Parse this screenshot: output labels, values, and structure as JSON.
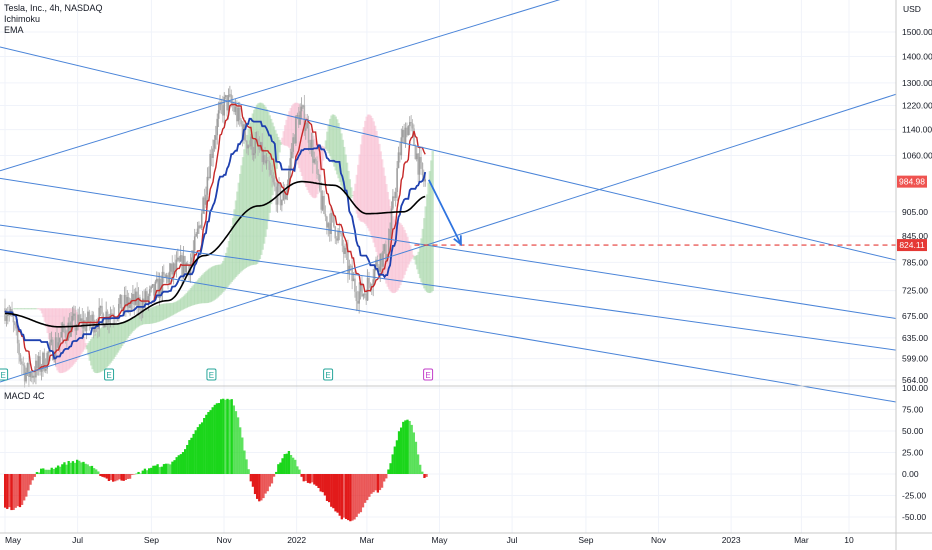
{
  "header": {
    "symbol_line": "Tesla, Inc., 4h, NASDAQ",
    "indicator_1": "Ichimoku",
    "indicator_2": "EMA",
    "currency": "USD"
  },
  "macd_label": "MACD 4C",
  "colors": {
    "up_candle": "#26a69a",
    "down_candle": "#ef5350",
    "conversion_line": "#c62828",
    "base_line": "#1e40af",
    "ema": "#000000",
    "cloud_green": "#a5d6a7",
    "cloud_red": "#f8bbd0",
    "channel": "#4a84d8",
    "target_line": "#e53935",
    "macd_green": "#1bd61b",
    "macd_red": "#e21a1a",
    "arrow": "#2f74e0",
    "earnings_green": "#26a69a",
    "earnings_purple": "#c23ec9"
  },
  "price_badges": [
    {
      "value": "984.98",
      "color": "#ef5350"
    },
    {
      "value": "824.11",
      "color": "#e53935"
    }
  ],
  "earnings_markers": [
    {
      "label": "E",
      "color": "green"
    },
    {
      "label": "E",
      "color": "green"
    },
    {
      "label": "E",
      "color": "green"
    },
    {
      "label": "E",
      "color": "green"
    },
    {
      "label": "E",
      "color": "purple"
    }
  ],
  "chart_data": [
    {
      "type": "candlestick",
      "title": "Tesla, Inc., 4h, NASDAQ",
      "scale": "log",
      "ylim": [
        564,
        1500
      ],
      "y_ticks": [
        "1500.00",
        "1400.00",
        "1300.00",
        "1220.00",
        "1140.00",
        "1060.00",
        "905.00",
        "845.00",
        "785.00",
        "725.00",
        "675.00",
        "635.00",
        "599.00",
        "564.00"
      ],
      "x_ticks": [
        "May",
        "Jul",
        "Sep",
        "Nov",
        "2022",
        "Mar",
        "May",
        "Jul",
        "Sep",
        "Nov",
        "2023",
        "Mar",
        "10"
      ],
      "series_keypoints": [
        {
          "name": "price",
          "x": [
            "2021-05-01",
            "2021-05-20",
            "2021-07-01",
            "2021-08-20",
            "2021-10-01",
            "2021-11-04",
            "2021-11-25",
            "2021-12-20",
            "2022-01-04",
            "2022-01-28",
            "2022-02-24",
            "2022-03-15",
            "2022-04-04",
            "2022-04-19"
          ],
          "y": [
            690,
            575,
            660,
            700,
            780,
            1230,
            1090,
            940,
            1190,
            880,
            720,
            800,
            1150,
            985
          ]
        },
        {
          "name": "EMA",
          "x": [
            "2021-05-01",
            "2021-06-15",
            "2021-08-01",
            "2021-09-15",
            "2021-10-15",
            "2021-11-30",
            "2022-01-05",
            "2022-02-01",
            "2022-03-01",
            "2022-04-01",
            "2022-04-20"
          ],
          "y": [
            680,
            655,
            660,
            705,
            800,
            920,
            985,
            975,
            900,
            905,
            945
          ]
        }
      ],
      "horizontal_level": 824.11,
      "last_price": 984.98
    },
    {
      "type": "bar",
      "title": "MACD 4C",
      "ylim": [
        -60,
        100
      ],
      "y_ticks": [
        "100.00",
        "75.00",
        "50.00",
        "25.00",
        "0.00",
        "-25.00",
        "-50.00"
      ],
      "keypoints": {
        "x": [
          "2021-05-10",
          "2021-06-01",
          "2021-07-01",
          "2021-08-01",
          "2021-09-10",
          "2021-11-05",
          "2021-12-01",
          "2021-12-25",
          "2022-01-10",
          "2022-02-15",
          "2022-03-10",
          "2022-04-04",
          "2022-04-20"
        ],
        "y": [
          -40,
          5,
          15,
          -8,
          10,
          88,
          -30,
          25,
          -10,
          -55,
          -20,
          65,
          -5
        ]
      }
    }
  ]
}
